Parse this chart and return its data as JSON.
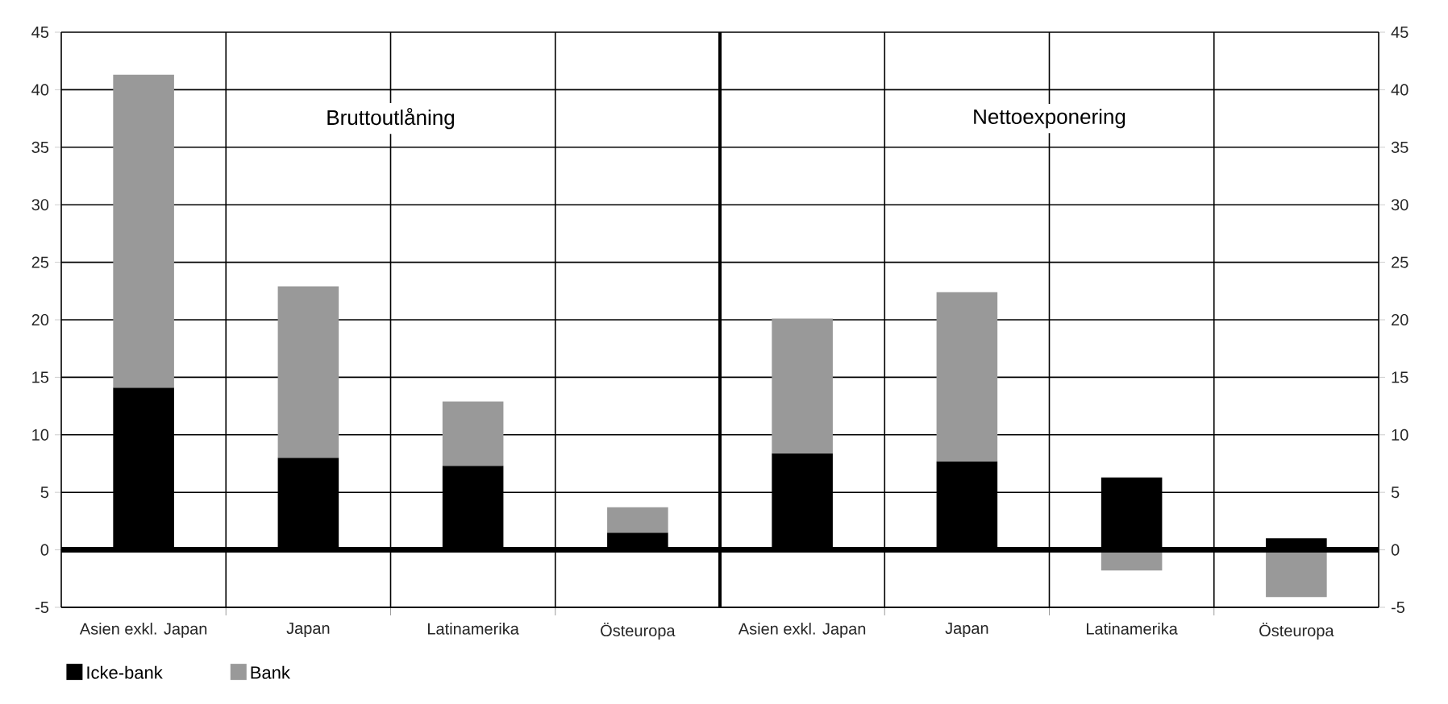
{
  "chart_data": [
    {
      "type": "bar",
      "stacked": true,
      "categories": [
        "Asien exkl. Japan",
        "Japan",
        "Latinamerika",
        "Östeuropa"
      ],
      "series": [
        {
          "name": "Icke-bank",
          "color": "#000000",
          "values": [
            14.1,
            8.0,
            7.3,
            1.5
          ]
        },
        {
          "name": "Bank",
          "color": "#999999",
          "values": [
            27.2,
            14.9,
            5.6,
            2.2
          ]
        }
      ],
      "annotations": [
        "Bruttoutlåning"
      ],
      "ylim": [
        -5,
        45
      ],
      "yticks": [
        -5,
        0,
        5,
        10,
        15,
        20,
        25,
        30,
        35,
        40,
        45
      ],
      "ref_lines": [
        {
          "axis": "y",
          "value": 0,
          "color": "#000000"
        }
      ],
      "grid": true,
      "legend": "bottom left"
    },
    {
      "type": "bar",
      "stacked": true,
      "categories": [
        "Asien exkl. Japan",
        "Japan",
        "Latinamerika",
        "Östeuropa"
      ],
      "series": [
        {
          "color": "#000000",
          "values": [
            8.4,
            7.7,
            6.3,
            1.0
          ]
        },
        {
          "color": "#999999",
          "values": [
            11.7,
            14.7,
            -1.8,
            -4.1
          ]
        }
      ],
      "annotations": [
        "Nettoexponering"
      ],
      "ylim": [
        -5,
        45
      ],
      "yticks": [
        -5,
        0,
        5,
        10,
        15,
        20,
        25,
        30,
        35,
        40,
        45
      ],
      "ref_lines": [
        {
          "axis": "y",
          "value": 0,
          "color": "#000000"
        }
      ],
      "grid": true
    }
  ]
}
